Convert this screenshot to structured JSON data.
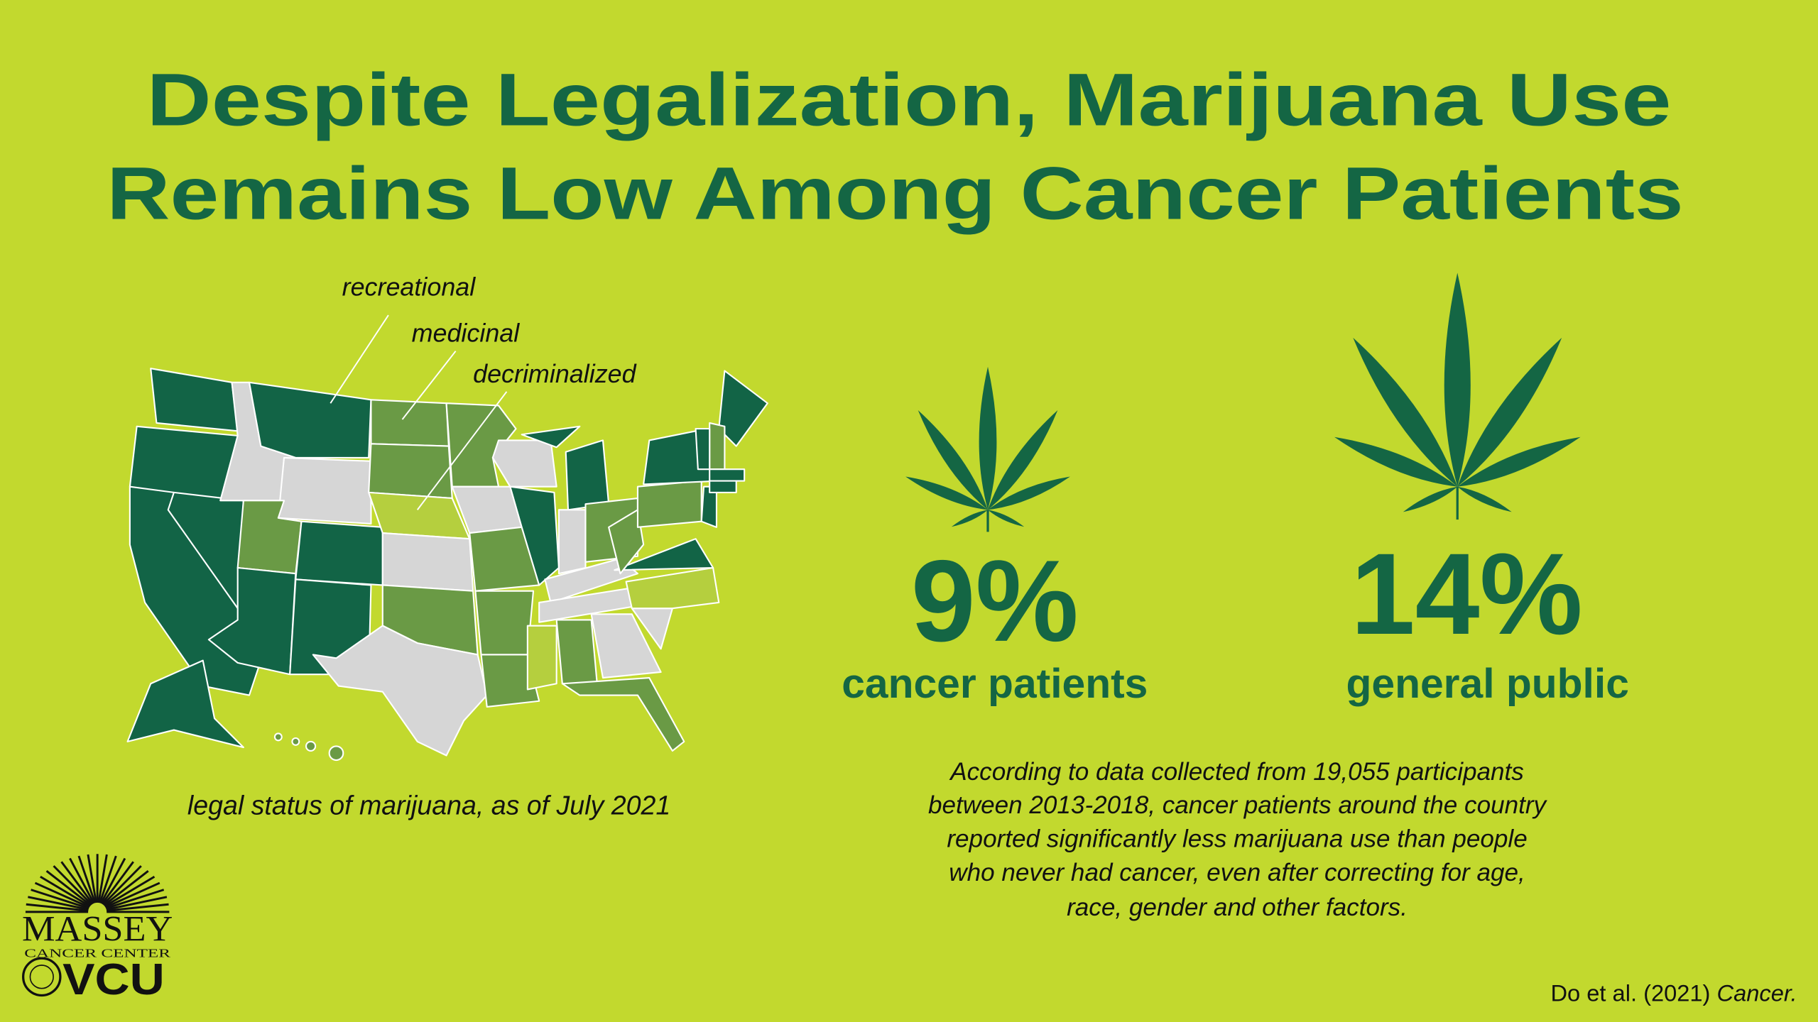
{
  "title": {
    "lines": [
      "Despite Legalization, Marijuana Use",
      "Remains Low Among Cancer Patients"
    ]
  },
  "map": {
    "legend": [
      "recreational",
      "medicinal",
      "decriminalized"
    ],
    "caption": "legal status of marijuana, as of July 2021"
  },
  "stats": [
    {
      "value": "9%",
      "label": "cancer patients"
    },
    {
      "value": "14%",
      "label": "general public"
    }
  ],
  "description": {
    "lines": [
      "According to data collected from 19,055 participants",
      "between 2013-2018, cancer patients around the country",
      "reported significantly less marijuana use than people",
      "who never had cancer, even after correcting for age,",
      "race, gender and other factors."
    ]
  },
  "citation": {
    "authors": "Do et al. (2021)",
    "journal": "Cancer."
  },
  "logo": {
    "name": "MASSEY",
    "subtitle": "CANCER CENTER",
    "university": "VCU"
  }
}
